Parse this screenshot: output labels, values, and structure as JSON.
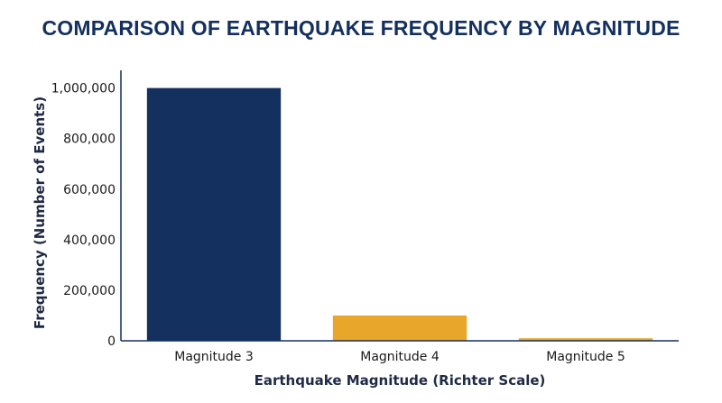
{
  "chart_data": {
    "type": "bar",
    "title": "COMPARISON OF EARTHQUAKE FREQUENCY BY MAGNITUDE",
    "xlabel": "Earthquake Magnitude (Richter Scale)",
    "ylabel": "Frequency (Number of Events)",
    "categories": [
      "Magnitude 3",
      "Magnitude 4",
      "Magnitude 5"
    ],
    "values": [
      1000000,
      100000,
      10000
    ],
    "colors": [
      "#14305e",
      "#e8a62a",
      "#e8a62a"
    ],
    "ylim": [
      0,
      1070000
    ],
    "yticks": [
      0,
      200000,
      400000,
      600000,
      800000,
      1000000
    ],
    "ytick_labels": [
      "0",
      "200,000",
      "400,000",
      "600,000",
      "800,000",
      "1,000,000"
    ],
    "grid": false,
    "legend": "none"
  },
  "colors": {
    "title": "#14305e",
    "axis": "#14305e"
  }
}
